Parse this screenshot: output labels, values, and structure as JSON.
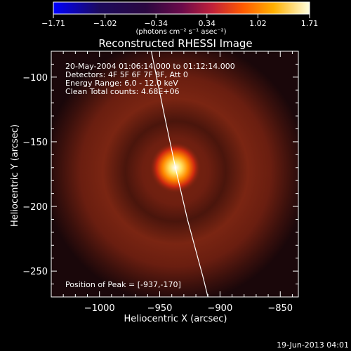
{
  "colorbar": {
    "ticks": [
      "-1.71",
      "-1.02",
      "-0.34",
      "0.34",
      "1.02",
      "1.71"
    ],
    "units_label": "(photons cm⁻² s⁻¹ asec⁻²)"
  },
  "title": "Reconstructed RHESSI Image",
  "info": {
    "line1": "20-May-2004 01:06:14.000 to 01:12:14.000",
    "line2": "Detectors: 4F 5F 6F 7F 8F, Att 0",
    "line3": "Energy Range: 6.0 - 12.0 keV",
    "line4": "Clean    Total counts: 4.68E+06"
  },
  "peak_label": "Position of Peak = [-937,-170]",
  "footer_date": "19-Jun-2013 04:01",
  "chart_data": {
    "type": "heatmap",
    "title": "Reconstructed RHESSI Image",
    "xlabel": "Heliocentric X (arcsec)",
    "ylabel": "Heliocentric Y (arcsec)",
    "xlim": [
      -1040,
      -835
    ],
    "ylim": [
      -270,
      -80
    ],
    "x_ticks": [
      -1000,
      -950,
      -900,
      -850
    ],
    "y_ticks": [
      -250,
      -200,
      -150,
      -100
    ],
    "x_tick_labels": [
      "−1000",
      "−950",
      "−900",
      "−850"
    ],
    "y_tick_labels": [
      "−250",
      "−200",
      "−150",
      "−100"
    ],
    "peak": [
      -937,
      -170
    ],
    "colorbar_range": [
      -1.71,
      1.71
    ],
    "limb_curve": [
      [
        -957,
        -80
      ],
      [
        -946,
        -130
      ],
      [
        -937,
        -170
      ],
      [
        -927,
        -210
      ],
      [
        -914,
        -255
      ],
      [
        -910,
        -270
      ]
    ]
  }
}
